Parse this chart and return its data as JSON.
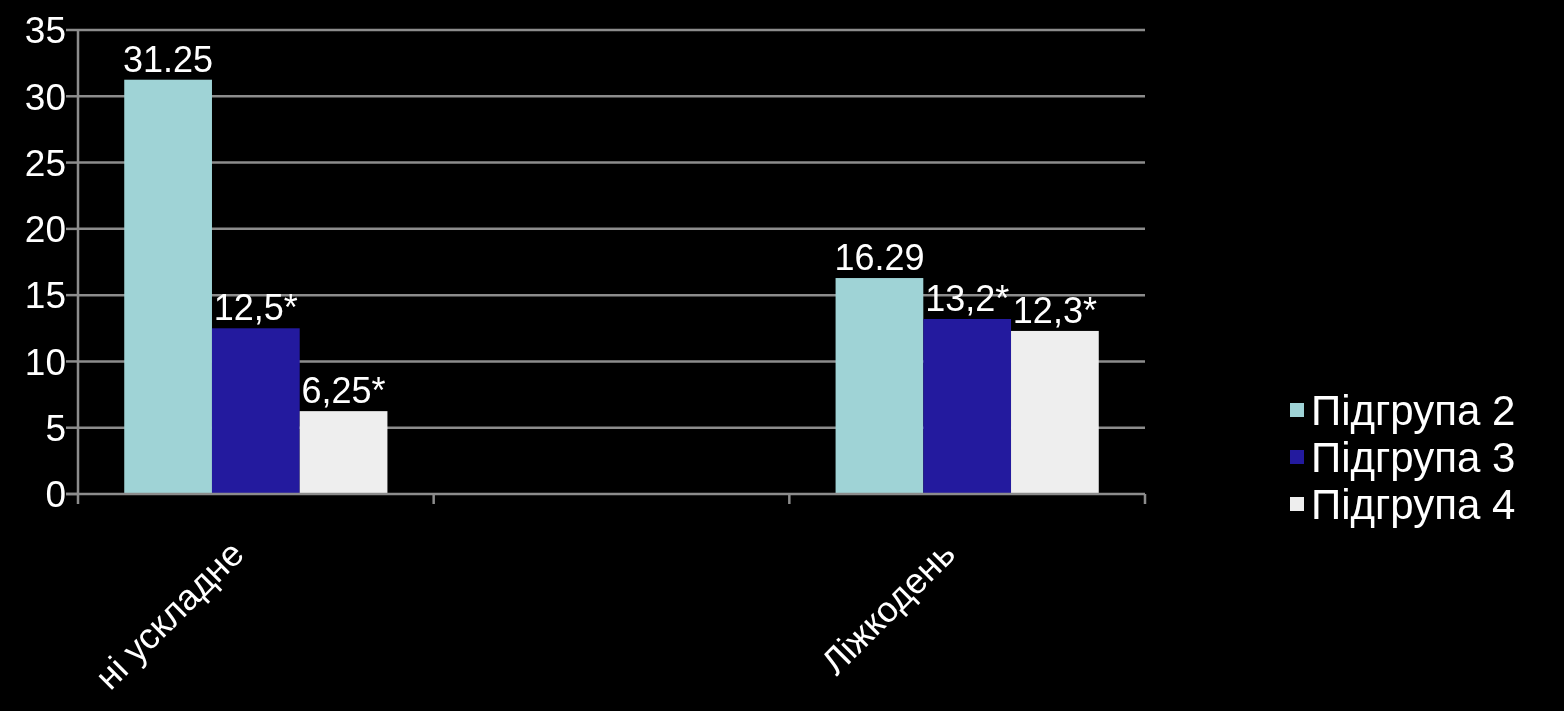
{
  "chart_data": {
    "type": "bar",
    "categories": [
      "ні ускладне",
      null,
      "Ліжкодень"
    ],
    "series": [
      {
        "name": "Підгрупа 2",
        "color": "#9fd3d6",
        "values": [
          31.25,
          null,
          16.29
        ],
        "value_labels": [
          "31.25",
          null,
          "16.29"
        ]
      },
      {
        "name": "Підгрупа 3",
        "color": "#231a9e",
        "values": [
          12.5,
          null,
          13.2
        ],
        "value_labels": [
          "12,5*",
          null,
          "13,2*"
        ]
      },
      {
        "name": "Підгрупа 4",
        "color": "#eeeeee",
        "values": [
          6.25,
          null,
          12.3
        ],
        "value_labels": [
          "6,25*",
          null,
          "12,3*"
        ]
      }
    ],
    "ylim": [
      0,
      35
    ],
    "yticks": [
      0,
      5,
      10,
      15,
      20,
      25,
      30,
      35
    ],
    "grid": "y",
    "legend": "right"
  }
}
